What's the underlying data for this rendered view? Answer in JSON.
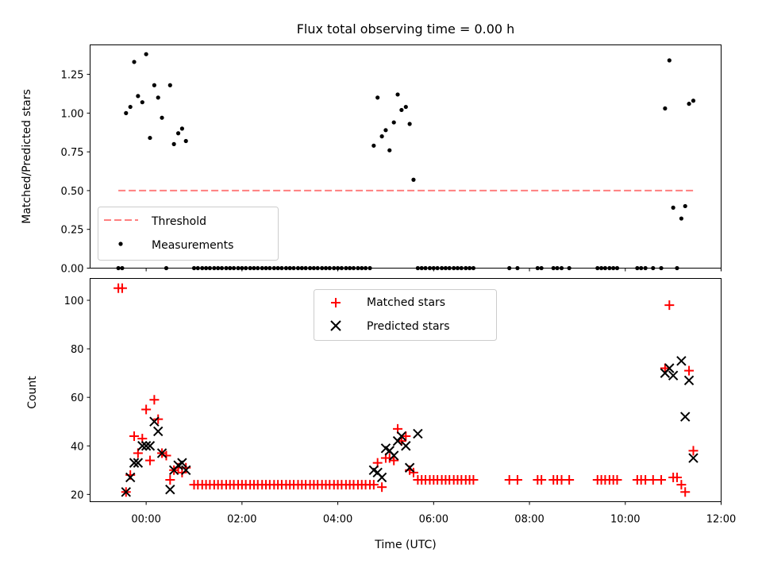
{
  "chart_data": [
    {
      "type": "scatter",
      "title": "Flux total observing time = 0.00 h",
      "xlabel": "",
      "ylabel": "Matched/Predicted stars",
      "xlim_hours": [
        -1.17,
        12.0
      ],
      "ylim": [
        0.0,
        1.44
      ],
      "yticks": [
        "0.00",
        "0.25",
        "0.50",
        "0.75",
        "1.00",
        "1.25"
      ],
      "legend_position": "lower-left",
      "threshold": {
        "name": "Threshold",
        "value": 0.5,
        "x_range_hours": [
          -0.58,
          11.42
        ],
        "color": "#ff7f7f"
      },
      "series": [
        {
          "name": "Measurements",
          "color": "#000000",
          "x_hours": [
            -0.58,
            -0.5,
            -0.42,
            -0.33,
            -0.25,
            -0.17,
            -0.08,
            0.0,
            0.08,
            0.17,
            0.25,
            0.33,
            0.42,
            0.5,
            0.58,
            0.67,
            0.75,
            0.83,
            1.0,
            1.08,
            1.17,
            1.25,
            1.33,
            1.42,
            1.5,
            1.58,
            1.67,
            1.75,
            1.83,
            1.92,
            2.0,
            2.08,
            2.17,
            2.25,
            2.33,
            2.42,
            2.5,
            2.58,
            2.67,
            2.75,
            2.83,
            2.92,
            3.0,
            3.08,
            3.17,
            3.25,
            3.33,
            3.42,
            3.5,
            3.58,
            3.67,
            3.75,
            3.83,
            3.92,
            4.0,
            4.08,
            4.17,
            4.25,
            4.33,
            4.42,
            4.5,
            4.58,
            4.67,
            4.75,
            4.83,
            4.92,
            5.0,
            5.08,
            5.17,
            5.25,
            5.33,
            5.42,
            5.5,
            5.58,
            5.67,
            5.75,
            5.83,
            5.92,
            6.0,
            6.08,
            6.17,
            6.25,
            6.33,
            6.42,
            6.5,
            6.58,
            6.67,
            6.75,
            6.83,
            7.58,
            7.75,
            8.17,
            8.25,
            8.5,
            8.58,
            8.67,
            8.83,
            9.42,
            9.5,
            9.58,
            9.67,
            9.75,
            9.83,
            10.25,
            10.33,
            10.42,
            10.58,
            10.75,
            10.83,
            10.92,
            11.0,
            11.08,
            11.17,
            11.25,
            11.33,
            11.42
          ],
          "y": [
            0.0,
            0.0,
            1.0,
            1.04,
            1.33,
            1.11,
            1.07,
            1.38,
            0.84,
            1.18,
            1.1,
            0.97,
            0.0,
            1.18,
            0.8,
            0.87,
            0.9,
            0.82,
            0.0,
            0.0,
            0.0,
            0.0,
            0.0,
            0.0,
            0.0,
            0.0,
            0.0,
            0.0,
            0.0,
            0.0,
            0.0,
            0.0,
            0.0,
            0.0,
            0.0,
            0.0,
            0.0,
            0.0,
            0.0,
            0.0,
            0.0,
            0.0,
            0.0,
            0.0,
            0.0,
            0.0,
            0.0,
            0.0,
            0.0,
            0.0,
            0.0,
            0.0,
            0.0,
            0.0,
            0.0,
            0.0,
            0.0,
            0.0,
            0.0,
            0.0,
            0.0,
            0.0,
            0.0,
            0.79,
            1.1,
            0.85,
            0.89,
            0.76,
            0.94,
            1.12,
            1.02,
            1.04,
            0.93,
            0.57,
            0.0,
            0.0,
            0.0,
            0.0,
            0.0,
            0.0,
            0.0,
            0.0,
            0.0,
            0.0,
            0.0,
            0.0,
            0.0,
            0.0,
            0.0,
            0.0,
            0.0,
            0.0,
            0.0,
            0.0,
            0.0,
            0.0,
            0.0,
            0.0,
            0.0,
            0.0,
            0.0,
            0.0,
            0.0,
            0.0,
            0.0,
            0.0,
            0.0,
            0.0,
            1.03,
            1.34,
            0.39,
            0.0,
            0.32,
            0.4,
            1.06,
            1.08
          ]
        }
      ]
    },
    {
      "type": "scatter",
      "title": "",
      "xlabel": "Time (UTC)",
      "ylabel": "Count",
      "xlim_hours": [
        -1.17,
        12.0
      ],
      "ylim": [
        17,
        109
      ],
      "yticks": [
        "20",
        "40",
        "60",
        "80",
        "100"
      ],
      "xticks": [
        "00:00",
        "02:00",
        "04:00",
        "06:00",
        "08:00",
        "10:00",
        "12:00"
      ],
      "legend_position": "upper-center",
      "series": [
        {
          "name": "Matched stars",
          "marker": "plus",
          "color": "#ff0000",
          "x_hours": [
            -0.58,
            -0.5,
            -0.42,
            -0.33,
            -0.25,
            -0.17,
            -0.08,
            0.0,
            0.08,
            0.17,
            0.25,
            0.33,
            0.42,
            0.5,
            0.58,
            0.67,
            0.75,
            0.83,
            1.0,
            1.08,
            1.17,
            1.25,
            1.33,
            1.42,
            1.5,
            1.58,
            1.67,
            1.75,
            1.83,
            1.92,
            2.0,
            2.08,
            2.17,
            2.25,
            2.33,
            2.42,
            2.5,
            2.58,
            2.67,
            2.75,
            2.83,
            2.92,
            3.0,
            3.08,
            3.17,
            3.25,
            3.33,
            3.42,
            3.5,
            3.58,
            3.67,
            3.75,
            3.83,
            3.92,
            4.0,
            4.08,
            4.17,
            4.25,
            4.33,
            4.42,
            4.5,
            4.58,
            4.67,
            4.75,
            4.83,
            4.92,
            5.0,
            5.08,
            5.17,
            5.25,
            5.33,
            5.42,
            5.5,
            5.58,
            5.67,
            5.75,
            5.83,
            5.92,
            6.0,
            6.08,
            6.17,
            6.25,
            6.33,
            6.42,
            6.5,
            6.58,
            6.67,
            6.75,
            6.83,
            7.58,
            7.75,
            8.17,
            8.25,
            8.5,
            8.58,
            8.67,
            8.83,
            9.42,
            9.5,
            9.58,
            9.67,
            9.75,
            9.83,
            10.25,
            10.33,
            10.42,
            10.58,
            10.75,
            10.83,
            10.92,
            11.0,
            11.08,
            11.17,
            11.25,
            11.33,
            11.42
          ],
          "y": [
            105,
            105,
            21,
            28,
            44,
            37,
            43,
            55,
            34,
            59,
            51,
            37,
            36,
            26,
            30,
            31,
            29,
            31,
            24,
            24,
            24,
            24,
            24,
            24,
            24,
            24,
            24,
            24,
            24,
            24,
            24,
            24,
            24,
            24,
            24,
            24,
            24,
            24,
            24,
            24,
            24,
            24,
            24,
            24,
            24,
            24,
            24,
            24,
            24,
            24,
            24,
            24,
            24,
            24,
            24,
            24,
            24,
            24,
            24,
            24,
            24,
            24,
            24,
            24,
            33,
            23,
            35,
            35,
            34,
            47,
            42,
            44,
            30,
            29,
            26,
            26,
            26,
            26,
            26,
            26,
            26,
            26,
            26,
            26,
            26,
            26,
            26,
            26,
            26,
            26,
            26,
            26,
            26,
            26,
            26,
            26,
            26,
            26,
            26,
            26,
            26,
            26,
            26,
            26,
            26,
            26,
            26,
            26,
            72,
            98,
            27,
            27,
            24,
            21,
            71,
            38
          ]
        },
        {
          "name": "Predicted stars",
          "marker": "x",
          "color": "#000000",
          "x_hours": [
            -0.42,
            -0.33,
            -0.25,
            -0.17,
            -0.08,
            0.0,
            0.08,
            0.17,
            0.25,
            0.33,
            0.5,
            0.58,
            0.67,
            0.75,
            0.83,
            4.75,
            4.83,
            4.92,
            5.0,
            5.08,
            5.17,
            5.25,
            5.33,
            5.42,
            5.5,
            5.67,
            10.83,
            10.92,
            11.0,
            11.17,
            11.25,
            11.33,
            11.42
          ],
          "y": [
            21,
            27,
            33,
            33,
            40,
            40,
            40,
            50,
            46,
            37,
            22,
            30,
            32,
            33,
            30,
            30,
            29,
            27,
            39,
            38,
            36,
            42,
            44,
            40,
            31,
            45,
            70,
            72,
            69,
            75,
            52,
            67,
            35
          ]
        }
      ]
    }
  ]
}
